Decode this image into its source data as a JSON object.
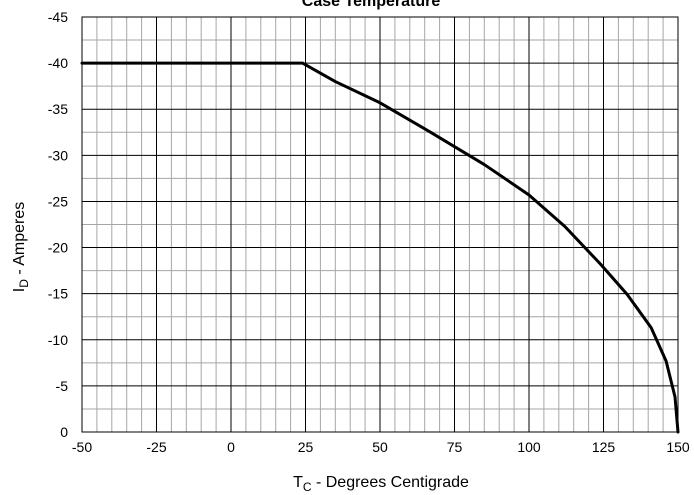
{
  "chart_data": {
    "type": "line",
    "title": "Case Temperature",
    "xlabel_main": "T",
    "xlabel_sub": "C",
    "xlabel_rest": " - Degrees Centigrade",
    "ylabel_main": "I",
    "ylabel_sub": "D",
    "ylabel_rest": " - Amperes",
    "xlim": [
      -50,
      150
    ],
    "ylim": [
      0,
      -45
    ],
    "x_ticks": [
      -50,
      -25,
      0,
      25,
      50,
      75,
      100,
      125,
      150
    ],
    "y_ticks": [
      0,
      -5,
      -10,
      -15,
      -20,
      -25,
      -30,
      -35,
      -40,
      -45
    ],
    "minor_grid_x": 5,
    "minor_grid_y": 2.5,
    "grid": true,
    "series": [
      {
        "x": [
          -50,
          24,
          35,
          50,
          67,
          85,
          100,
          112,
          124,
          133,
          141,
          146,
          149,
          150
        ],
        "y": [
          -40,
          -40,
          -38,
          -35.7,
          -32.5,
          -29,
          -25.7,
          -22.3,
          -18.2,
          -14.9,
          -11.3,
          -7.7,
          -3.8,
          0
        ]
      }
    ]
  }
}
